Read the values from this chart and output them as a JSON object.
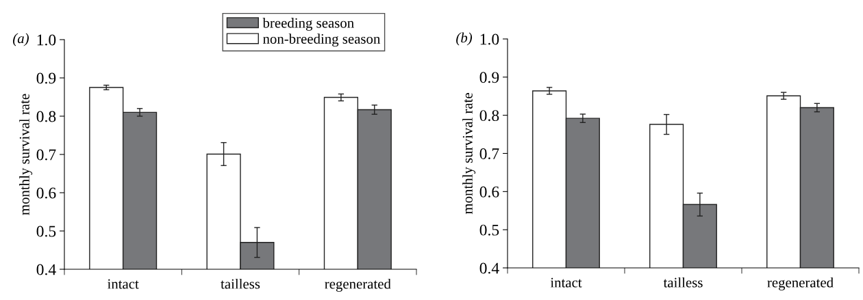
{
  "chart_data": [
    {
      "type": "bar",
      "title": "(a)",
      "ylabel": "monthly survival rate",
      "categories": [
        "intact",
        "tailless",
        "regenerated"
      ],
      "ylim": [
        0.4,
        1.0
      ],
      "yticks": [
        {
          "value": 0.4,
          "label": "0.4"
        },
        {
          "value": 0.5,
          "label": "0.5"
        },
        {
          "value": 0.6,
          "label": "0.6"
        },
        {
          "value": 0.7,
          "label": "0.7"
        },
        {
          "value": 0.8,
          "label": "0.8"
        },
        {
          "value": 0.9,
          "label": "0.9"
        },
        {
          "value": 1.0,
          "label": "1.0"
        }
      ],
      "grid": false,
      "legend": "top right",
      "series": [
        {
          "name": "non-breeding season",
          "color": "#ffffff",
          "values": [
            0.875,
            0.701,
            0.849
          ],
          "errors": [
            0.006,
            0.03,
            0.009
          ]
        },
        {
          "name": "breeding season",
          "color": "#77787b",
          "values": [
            0.81,
            0.47,
            0.817
          ],
          "errors": [
            0.01,
            0.039,
            0.012
          ]
        }
      ]
    },
    {
      "type": "bar",
      "title": "(b)",
      "ylabel": "monthly survival rate",
      "categories": [
        "intact",
        "tailless",
        "regenerated"
      ],
      "ylim": [
        0.4,
        1.0
      ],
      "yticks": [
        {
          "value": 0.4,
          "label": "0.4"
        },
        {
          "value": 0.5,
          "label": "0.5"
        },
        {
          "value": 0.6,
          "label": "0.6"
        },
        {
          "value": 0.7,
          "label": "0.7"
        },
        {
          "value": 0.8,
          "label": "0.8"
        },
        {
          "value": 0.9,
          "label": "0.9"
        },
        {
          "value": 1.0,
          "label": "1.0"
        }
      ],
      "grid": false,
      "legend": false,
      "series": [
        {
          "color": "#ffffff",
          "values": [
            0.864,
            0.776,
            0.851
          ],
          "errors": [
            0.009,
            0.026,
            0.009
          ]
        },
        {
          "color": "#77787b",
          "values": [
            0.792,
            0.566,
            0.82
          ],
          "errors": [
            0.011,
            0.03,
            0.011
          ]
        }
      ]
    }
  ]
}
